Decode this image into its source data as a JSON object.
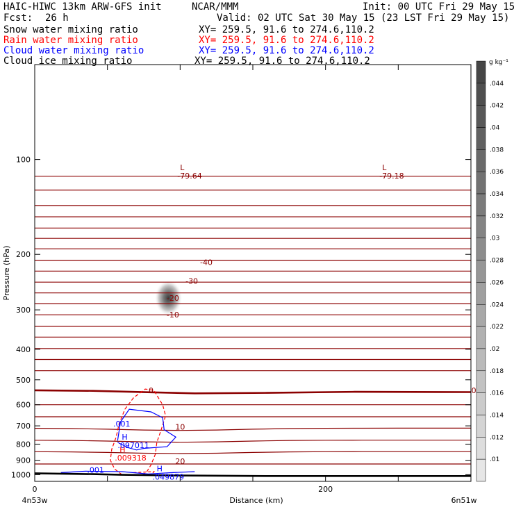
{
  "header": {
    "title": "HAIC-HIWC 13km ARW-GFS init",
    "org": "NCAR/MMM",
    "init": "Init: 00 UTC Fri 29 May 15",
    "fcst_label": "Fcst:",
    "fcst_value": "26 h",
    "valid": "Valid: 02 UTC Sat 30 May 15 (23 LST Fri 29 May 15)"
  },
  "legend": [
    {
      "label": "Snow water mixing ratio",
      "xy": "XY= 259.5, 91.6 to 274.6,110.2",
      "color": "#000000"
    },
    {
      "label": "Rain water mixing ratio",
      "xy": "XY= 259.5, 91.6 to 274.6,110.2",
      "color": "#ff0000"
    },
    {
      "label": "Cloud water mixing ratio",
      "xy": "XY= 259.5, 91.6 to 274.6,110.2",
      "color": "#0000ff"
    },
    {
      "label": "Cloud ice mixing ratio",
      "xy": "XY= 259.5, 91.6 to 274.6,110.2",
      "color": "#000000"
    }
  ],
  "chart_data": {
    "type": "cross-section",
    "xlabel": "Distance (km)",
    "ylabel": "Pressure (hPa)",
    "xlim": [
      0,
      300
    ],
    "ylim": [
      1050,
      50
    ],
    "y_scale": "log",
    "x_ticks": [
      0,
      200
    ],
    "y_ticks": [
      100,
      200,
      300,
      400,
      500,
      600,
      700,
      800,
      900,
      1000
    ],
    "left_label": "4n53w",
    "right_label": "6n51w",
    "colorbar": {
      "unit": "g kg⁻¹",
      "labels": [
        ".044",
        ".042",
        ".04",
        ".038",
        ".036",
        ".034",
        ".032",
        ".03",
        ".028",
        ".026",
        ".024",
        ".022",
        ".02",
        ".018",
        ".016",
        ".014",
        ".012",
        ".01"
      ]
    },
    "temperature_labels": [
      "-40",
      "-30",
      "-20",
      "-10",
      "0",
      "0",
      "10",
      "20"
    ],
    "extrema_labels": [
      {
        "letter": "L",
        "value": "-79.64",
        "color": "#8b0000"
      },
      {
        "letter": "L",
        "value": "-79.18",
        "color": "#8b0000"
      },
      {
        "letter": "H",
        "value": ".097011",
        "color": "#0000ff"
      },
      {
        "letter": "H",
        "value": ".009318",
        "color": "#ff0000"
      },
      {
        "letter": "H",
        "value": ".049879",
        "color": "#0000ff"
      }
    ],
    "contour_labels": [
      {
        "text": ".001",
        "color": "#0000ff"
      },
      {
        "text": ".001",
        "color": "#0000ff"
      }
    ],
    "shading_maximum": {
      "x": 92,
      "p": 275
    },
    "colors": {
      "isotherm": "#8b0000",
      "rain": "#ff0000",
      "cloud": "#0000ff",
      "terrain": "#000000"
    }
  }
}
